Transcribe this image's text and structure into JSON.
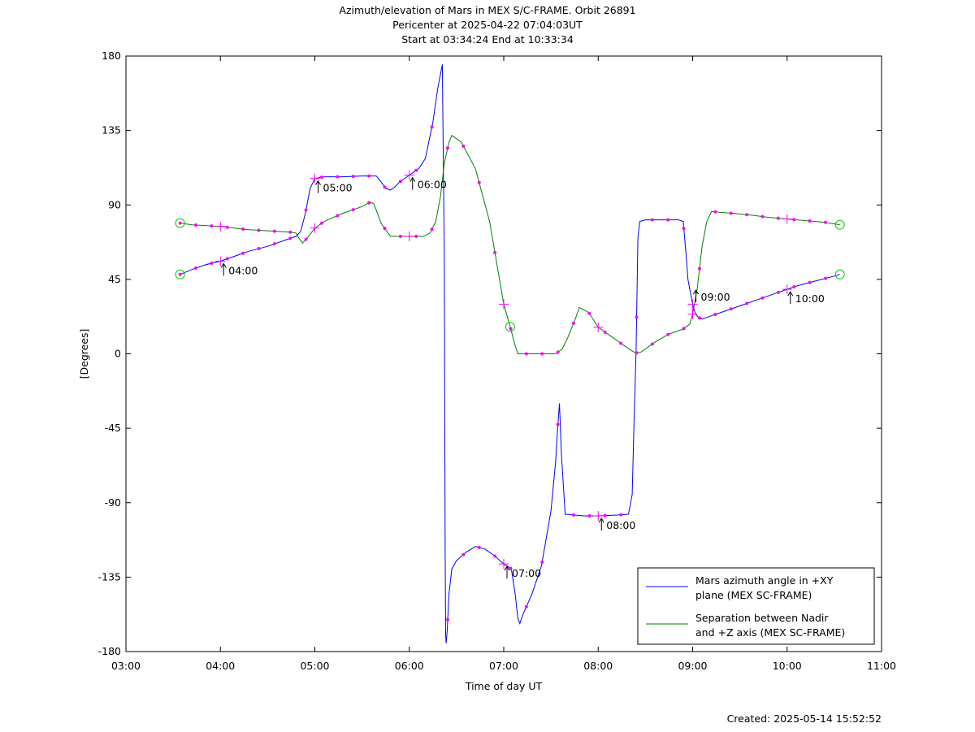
{
  "chart_data": {
    "type": "line",
    "title_lines": [
      "Azimuth/elevation of Mars in MEX S/C-FRAME.  Orbit 26891",
      "Pericenter at 2025-04-22 07:04:03UT",
      "Start at 03:34:24 End at 10:33:34"
    ],
    "xlabel": "Time of day UT",
    "ylabel": "[Degrees]",
    "xlim": [
      3.0,
      11.0
    ],
    "ylim": [
      -180,
      180
    ],
    "x_tick_values": [
      3,
      4,
      5,
      6,
      7,
      8,
      9,
      10,
      11
    ],
    "x_tick_labels": [
      "03:00",
      "04:00",
      "05:00",
      "06:00",
      "07:00",
      "08:00",
      "09:00",
      "10:00",
      "11:00"
    ],
    "y_tick_values": [
      180,
      135,
      90,
      45,
      0,
      -45,
      -90,
      -135,
      -180
    ],
    "y_tick_labels": [
      "180",
      "135",
      "90",
      "45",
      "0",
      "-45",
      "-90",
      "-135",
      "-180"
    ],
    "grid": false,
    "legend_placement": "bottom-right",
    "colors": {
      "azimuth": "#0000ff",
      "separation": "#008000",
      "markers": "#ff00ff",
      "endpoints": "#00cc00"
    },
    "series": [
      {
        "name": "Mars azimuth angle in +XY plane (MEX SC-FRAME)",
        "legend_lines": [
          "Mars azimuth angle in +XY",
          "plane (MEX SC-FRAME)"
        ],
        "color": "#0000ff",
        "x": [
          3.573,
          3.7,
          3.85,
          4.0,
          4.15,
          4.3,
          4.5,
          4.7,
          4.8,
          4.85,
          4.9,
          4.95,
          5.0,
          5.1,
          5.3,
          5.5,
          5.65,
          5.7,
          5.75,
          5.8,
          5.85,
          5.9,
          6.0,
          6.1,
          6.17,
          6.25,
          6.3,
          6.35,
          6.37,
          6.38,
          6.385,
          6.39,
          6.4,
          6.42,
          6.45,
          6.5,
          6.6,
          6.7,
          6.8,
          6.9,
          7.0,
          7.08,
          7.12,
          7.15,
          7.17,
          7.2,
          7.3,
          7.4,
          7.5,
          7.55,
          7.57,
          7.59,
          7.61,
          7.65,
          7.75,
          7.85,
          8.0,
          8.2,
          8.32,
          8.36,
          8.38,
          8.4,
          8.42,
          8.44,
          8.5,
          8.6,
          8.7,
          8.8,
          8.85,
          8.9,
          8.93,
          8.95,
          9.0,
          9.03,
          9.06,
          9.1,
          9.15,
          9.3,
          9.5,
          9.7,
          9.9,
          10.0,
          10.1,
          10.3,
          10.5,
          10.559
        ],
        "y": [
          48,
          51,
          54,
          56,
          59,
          62,
          65,
          69,
          71,
          74,
          85,
          100,
          106,
          107,
          107,
          107.5,
          107.5,
          104,
          100,
          99,
          101,
          104,
          108,
          112,
          118,
          140,
          160,
          175,
          60,
          -120,
          -170,
          -175,
          -168,
          -145,
          -130,
          -125,
          -120,
          -116.5,
          -118,
          -122,
          -127,
          -130,
          -145,
          -160,
          -163,
          -158,
          -145,
          -128,
          -95,
          -65,
          -45,
          -30,
          -60,
          -97,
          -97.5,
          -98,
          -98,
          -97.5,
          -97,
          -85,
          -40,
          0,
          70,
          80,
          81,
          81,
          81,
          81,
          81,
          80,
          60,
          45,
          30,
          24,
          22,
          21,
          22,
          25,
          29,
          33,
          37,
          39,
          41,
          44,
          47,
          48
        ]
      },
      {
        "name": "Separation between Nadir and +Z axis (MEX SC-FRAME)",
        "legend_lines": [
          "Separation between Nadir",
          "and +Z axis (MEX SC-FRAME)"
        ],
        "color": "#008000",
        "x": [
          3.573,
          3.7,
          4.0,
          4.3,
          4.6,
          4.75,
          4.8,
          4.83,
          4.87,
          4.92,
          5.0,
          5.1,
          5.3,
          5.5,
          5.58,
          5.62,
          5.65,
          5.7,
          5.8,
          6.0,
          6.15,
          6.22,
          6.28,
          6.33,
          6.37,
          6.42,
          6.45,
          6.55,
          6.7,
          6.85,
          7.0,
          7.06,
          7.12,
          7.15,
          7.2,
          7.4,
          7.55,
          7.62,
          7.68,
          7.75,
          7.8,
          7.9,
          8.0,
          8.2,
          8.35,
          8.4,
          8.45,
          8.5,
          8.6,
          8.75,
          8.9,
          8.97,
          9.0,
          9.05,
          9.1,
          9.15,
          9.2,
          9.4,
          9.6,
          9.8,
          10.0,
          10.2,
          10.4,
          10.559
        ],
        "y": [
          79,
          78,
          77,
          75,
          74,
          73.5,
          73,
          70,
          67,
          70,
          76,
          80,
          85,
          89,
          91.5,
          91,
          87,
          79,
          71,
          71,
          71,
          73,
          80,
          95,
          115,
          128,
          132,
          128,
          112,
          80,
          30,
          18,
          5,
          0,
          0,
          0,
          0,
          3,
          10,
          20,
          28,
          25,
          16,
          8,
          2,
          0.5,
          1,
          3,
          7,
          12,
          15,
          18,
          24,
          40,
          65,
          80,
          86,
          85,
          84,
          82.5,
          81.5,
          80.5,
          79.5,
          78
        ]
      }
    ],
    "time_markers": [
      {
        "label": "04:00",
        "x": 4.0,
        "y": 56
      },
      {
        "label": "05:00",
        "x": 5.0,
        "y": 106
      },
      {
        "label": "06:00",
        "x": 6.0,
        "y": 108
      },
      {
        "label": "07:00",
        "x": 7.0,
        "y": -127
      },
      {
        "label": "08:00",
        "x": 8.0,
        "y": -98
      },
      {
        "label": "09:00",
        "x": 9.0,
        "y": 40
      },
      {
        "label": "10:00",
        "x": 10.0,
        "y": 39
      }
    ],
    "note": "Created: 2025-05-14 15:52:52"
  }
}
